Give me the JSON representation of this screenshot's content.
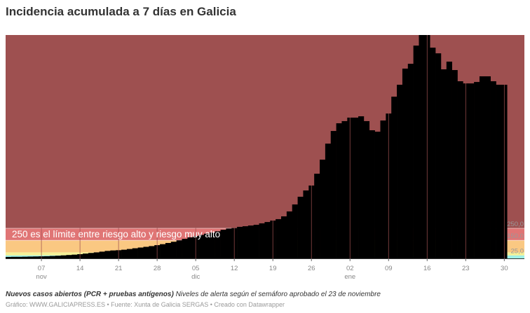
{
  "title": "Incidencia acumulada a 7 días en Galicia",
  "chart_data": {
    "type": "bar",
    "title": "Incidencia acumulada a 7 días en Galicia",
    "xlabel": "",
    "ylabel": "",
    "ylim": [
      0,
      1855
    ],
    "grid": false,
    "bar_color": "#000000",
    "dates_range": [
      "2020-11-01",
      "2021-01-30"
    ],
    "values": [
      12,
      13,
      13,
      14,
      15,
      16,
      17,
      18,
      20,
      22,
      25,
      28,
      31,
      35,
      40,
      45,
      50,
      56,
      62,
      66,
      68,
      72,
      78,
      84,
      90,
      96,
      102,
      110,
      118,
      128,
      138,
      150,
      162,
      175,
      185,
      195,
      205,
      215,
      225,
      238,
      248,
      252,
      262,
      267,
      273,
      279,
      291,
      302,
      314,
      326,
      349,
      390,
      448,
      512,
      564,
      605,
      703,
      820,
      953,
      1058,
      1122,
      1140,
      1169,
      1169,
      1180,
      1140,
      1064,
      1052,
      1145,
      1203,
      1343,
      1442,
      1576,
      1616,
      1767,
      1880,
      1870,
      1750,
      1703,
      1570,
      1634,
      1564,
      1471,
      1453,
      1453,
      1465,
      1512,
      1512,
      1471,
      1442,
      1442
    ],
    "x_ticks": [
      {
        "index": 6,
        "label": "07",
        "month": "nov"
      },
      {
        "index": 13,
        "label": "14",
        "month": ""
      },
      {
        "index": 20,
        "label": "21",
        "month": ""
      },
      {
        "index": 27,
        "label": "28",
        "month": ""
      },
      {
        "index": 34,
        "label": "05",
        "month": "dic"
      },
      {
        "index": 41,
        "label": "12",
        "month": ""
      },
      {
        "index": 48,
        "label": "19",
        "month": ""
      },
      {
        "index": 55,
        "label": "26",
        "month": ""
      },
      {
        "index": 62,
        "label": "02",
        "month": "ene"
      },
      {
        "index": 69,
        "label": "09",
        "month": ""
      },
      {
        "index": 76,
        "label": "16",
        "month": ""
      },
      {
        "index": 83,
        "label": "23",
        "month": ""
      },
      {
        "index": 90,
        "label": "30",
        "month": ""
      }
    ],
    "bands": [
      {
        "from": 0,
        "to": 25,
        "color": "#9ff0e6"
      },
      {
        "from": 25,
        "to": 50,
        "color": "#f5f096"
      },
      {
        "from": 50,
        "to": 150,
        "color": "#fac882"
      },
      {
        "from": 150,
        "to": 250,
        "color": "#e07575"
      },
      {
        "from": 250,
        "to": 1855,
        "color": "#9e5050"
      }
    ],
    "band_labels": [
      {
        "value": 250,
        "label": "250,0"
      },
      {
        "value": 150,
        "label": "150,0"
      },
      {
        "value": 25,
        "label": "25,0"
      }
    ],
    "annotation": "250 es el límite entre riesgo alto y riesgo muy alto"
  },
  "notes": {
    "bold": "Nuevos casos abiertos (PCR + pruebas antígenos)",
    "text": " Niveles de alerta según el semáforo aprobado el 23 de noviembre"
  },
  "credits": "Gráfico: WWW.GALICIAPRESS.ES • Fuente: Xunta de Galicia SERGAS • Creado con Datawrapper"
}
